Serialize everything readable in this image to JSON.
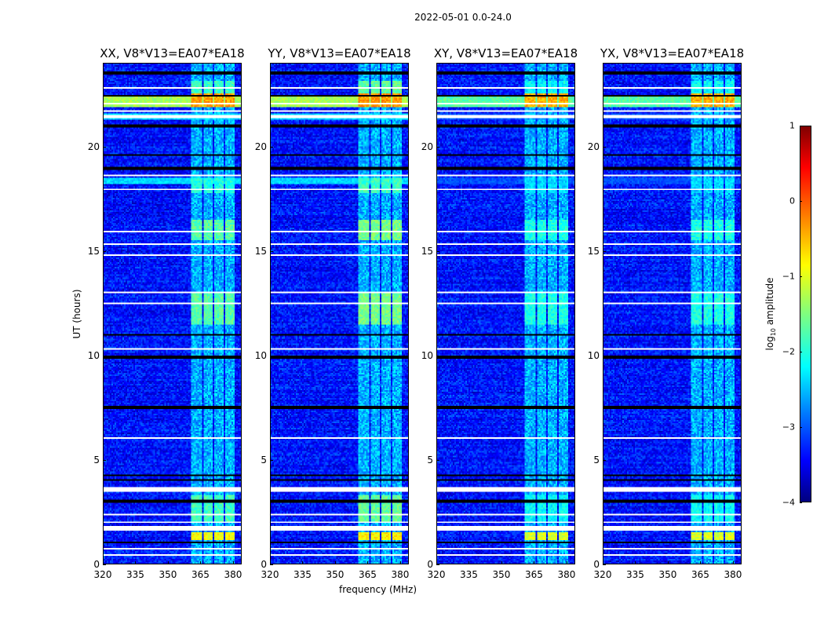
{
  "chart_data": {
    "type": "heatmap",
    "title": "2022-05-01 0.0-24.0",
    "xlabel": "frequency (MHz)",
    "ylabel": "UT (hours)",
    "xlim": [
      320,
      384
    ],
    "ylim": [
      0,
      24
    ],
    "xticks": [
      "320",
      "335",
      "350",
      "365",
      "380"
    ],
    "yticks": [
      "0",
      "5",
      "10",
      "15",
      "20"
    ],
    "panels": [
      {
        "title": "XX, V8*V13=EA07*EA18",
        "event_boost": 1.0
      },
      {
        "title": "YY, V8*V13=EA07*EA18",
        "event_boost": 1.1
      },
      {
        "title": "XY, V8*V13=EA07*EA18",
        "event_boost": 0.85
      },
      {
        "title": "YX, V8*V13=EA07*EA18",
        "event_boost": 0.85
      }
    ],
    "background_level": -3.3,
    "rfi_channels_mhz": [
      [
        361,
        366
      ],
      [
        366.5,
        371
      ],
      [
        371.5,
        376
      ],
      [
        376.5,
        381
      ]
    ],
    "rfi_level": -2.5,
    "bright_events": [
      {
        "hours": [
          1.1,
          1.5
        ],
        "level": -0.9
      },
      {
        "hours": [
          2.0,
          3.3
        ],
        "level": -1.8
      },
      {
        "hours": [
          11.5,
          13.0
        ],
        "level": -1.7
      },
      {
        "hours": [
          15.5,
          16.5
        ],
        "level": -1.7
      },
      {
        "hours": [
          17.8,
          18.5
        ],
        "level": -2.0
      },
      {
        "hours": [
          21.9,
          22.6
        ],
        "level": -0.4
      },
      {
        "hours": [
          22.6,
          23.2
        ],
        "level": -1.8
      }
    ],
    "wideband_events": [
      {
        "hours": [
          21.9,
          22.4
        ],
        "level": -1.3
      },
      {
        "hours": [
          18.2,
          18.5
        ],
        "level": -2.3
      },
      {
        "hours": [
          21.3,
          21.6
        ],
        "level": -2.3
      }
    ],
    "flagged_hours": [
      [
        0.35,
        0.45
      ],
      [
        0.65,
        0.72
      ],
      [
        1.6,
        1.8
      ],
      [
        1.95,
        2.02
      ],
      [
        2.35,
        2.42
      ],
      [
        3.45,
        3.7
      ],
      [
        6.0,
        6.06
      ],
      [
        9.2,
        9.25
      ],
      [
        9.5,
        9.55
      ],
      [
        10.3,
        10.35
      ],
      [
        12.45,
        12.55
      ],
      [
        13.0,
        13.05
      ],
      [
        14.15,
        14.2
      ],
      [
        14.6,
        14.65
      ],
      [
        14.8,
        14.85
      ],
      [
        15.3,
        15.35
      ],
      [
        15.9,
        15.95
      ],
      [
        16.4,
        16.45
      ],
      [
        17.0,
        17.05
      ],
      [
        17.6,
        17.65
      ],
      [
        17.95,
        18.0
      ],
      [
        18.6,
        18.65
      ],
      [
        21.4,
        21.5
      ],
      [
        21.7,
        21.75
      ],
      [
        22.05,
        22.1
      ],
      [
        22.8,
        22.85
      ],
      [
        23.15,
        23.2
      ]
    ],
    "dark_hours": [
      [
        0.95,
        1.05
      ],
      [
        2.95,
        3.05
      ],
      [
        3.95,
        4.05
      ],
      [
        4.2,
        4.25
      ],
      [
        7.45,
        7.55
      ],
      [
        7.7,
        7.75
      ],
      [
        9.85,
        9.95
      ],
      [
        10.95,
        11.05
      ],
      [
        18.9,
        19.05
      ],
      [
        19.55,
        19.62
      ],
      [
        20.95,
        21.1
      ],
      [
        22.45,
        22.52
      ],
      [
        23.5,
        23.6
      ]
    ],
    "colorbar": {
      "label_parts": [
        "log",
        "10",
        " amplitude"
      ],
      "range": [
        -4,
        1
      ],
      "ticks": [
        1,
        0,
        -1,
        -2,
        -3,
        -4
      ],
      "tick_labels": [
        "1",
        "0",
        "−1",
        "−2",
        "−3",
        "−4"
      ],
      "colormap": "jet"
    }
  }
}
